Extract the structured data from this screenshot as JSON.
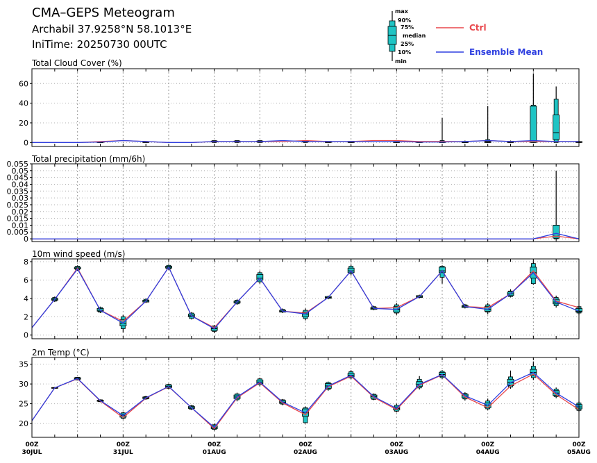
{
  "header": {
    "line1": "CMA–GEPS Meteogram",
    "line2": "Archabil 37.9258°N 58.1013°E",
    "line3": "IniTime: 20250730 00UTC"
  },
  "key": {
    "labels": [
      "max",
      "90%",
      "75%",
      "median",
      "25%",
      "10%",
      "min"
    ],
    "box_color": "#1fc4c4"
  },
  "legend": {
    "ctrl": {
      "label": "Ctrl",
      "color": "#e8474c"
    },
    "mean": {
      "label": "Ensemble Mean",
      "color": "#2e3fe0"
    }
  },
  "chart_data": [
    {
      "type": "box",
      "title": "Total Cloud Cover (%)",
      "ylim": [
        -4,
        75
      ],
      "yticks": [
        0,
        20,
        40,
        60
      ],
      "ytick_labels": [
        "0",
        "20",
        "40",
        "60"
      ],
      "x": [
        0,
        6,
        12,
        18,
        24,
        30,
        36,
        42,
        48,
        54,
        60,
        66,
        72,
        78,
        84,
        90,
        96,
        102,
        108,
        114,
        120,
        126,
        132,
        138,
        144
      ],
      "ctrl": [
        0,
        0,
        0,
        1,
        2,
        1,
        0,
        0,
        1,
        1,
        1,
        1,
        2,
        1,
        1,
        2,
        2,
        1,
        1,
        1,
        2,
        1,
        1,
        1,
        1
      ],
      "mean": [
        0,
        0,
        0,
        0.5,
        2,
        1,
        0,
        0,
        1,
        1,
        1,
        2,
        1,
        1,
        1,
        1,
        1,
        0.5,
        0.5,
        1,
        2,
        1,
        2,
        1,
        1
      ],
      "boxes": [
        {
          "x": 18,
          "min": 0,
          "p10": 0,
          "p25": 0,
          "median": 0,
          "p75": 1,
          "p90": 1,
          "max": 1
        },
        {
          "x": 30,
          "min": 0,
          "p10": 0,
          "p25": 0,
          "median": 0.5,
          "p75": 1,
          "p90": 1,
          "max": 1
        },
        {
          "x": 48,
          "min": 0,
          "p10": 0,
          "p25": 0.5,
          "median": 1,
          "p75": 1.5,
          "p90": 2,
          "max": 2
        },
        {
          "x": 54,
          "min": 0,
          "p10": 0,
          "p25": 0.5,
          "median": 1,
          "p75": 1.5,
          "p90": 2,
          "max": 2
        },
        {
          "x": 60,
          "min": 0,
          "p10": 0,
          "p25": 0.5,
          "median": 1,
          "p75": 1.5,
          "p90": 2,
          "max": 2
        },
        {
          "x": 72,
          "min": 0,
          "p10": 0,
          "p25": 0.5,
          "median": 1,
          "p75": 1.5,
          "p90": 2,
          "max": 2
        },
        {
          "x": 78,
          "min": 0,
          "p10": 0,
          "p25": 0,
          "median": 0.5,
          "p75": 1,
          "p90": 1,
          "max": 1
        },
        {
          "x": 84,
          "min": 0,
          "p10": 0,
          "p25": 0,
          "median": 0.5,
          "p75": 1,
          "p90": 1,
          "max": 1
        },
        {
          "x": 96,
          "min": 0,
          "p10": 0,
          "p25": 0,
          "median": 0.5,
          "p75": 1,
          "p90": 1,
          "max": 1
        },
        {
          "x": 102,
          "min": 0,
          "p10": 0,
          "p25": 0,
          "median": 0.5,
          "p75": 1,
          "p90": 1,
          "max": 1
        },
        {
          "x": 108,
          "min": 0,
          "p10": 0,
          "p25": 0,
          "median": 1,
          "p75": 1,
          "p90": 2,
          "max": 25
        },
        {
          "x": 114,
          "min": 0,
          "p10": 0,
          "p25": 0,
          "median": 0,
          "p75": 1,
          "p90": 1,
          "max": 2
        },
        {
          "x": 120,
          "min": 0,
          "p10": 0,
          "p25": 0,
          "median": 0.5,
          "p75": 1,
          "p90": 3,
          "max": 37
        },
        {
          "x": 126,
          "min": 0,
          "p10": 0,
          "p25": 0,
          "median": 0.5,
          "p75": 1,
          "p90": 1,
          "max": 2
        },
        {
          "x": 132,
          "min": 0,
          "p10": 0,
          "p25": 0,
          "median": 2,
          "p75": 37,
          "p90": 38,
          "max": 70
        },
        {
          "x": 138,
          "min": 0,
          "p10": 0,
          "p25": 3,
          "median": 10,
          "p75": 28,
          "p90": 44,
          "max": 57
        },
        {
          "x": 144,
          "min": 0,
          "p10": 0,
          "p25": 0,
          "median": 0.5,
          "p75": 1,
          "p90": 1,
          "max": 1
        }
      ]
    },
    {
      "type": "box",
      "title": "Total precipitation (mm/6h)",
      "ylim": [
        -0.002,
        0.055
      ],
      "yticks": [
        0,
        0.005,
        0.01,
        0.015,
        0.02,
        0.025,
        0.03,
        0.035,
        0.04,
        0.045,
        0.05,
        0.055
      ],
      "ytick_labels": [
        "0",
        "0.005",
        "0.01",
        "0.015",
        "0.02",
        "0.025",
        "0.03",
        "0.035",
        "0.04",
        "0.045",
        "0.05",
        "0.055"
      ],
      "x": [
        0,
        6,
        12,
        18,
        24,
        30,
        36,
        42,
        48,
        54,
        60,
        66,
        72,
        78,
        84,
        90,
        96,
        102,
        108,
        114,
        120,
        126,
        132,
        138,
        144
      ],
      "ctrl": [
        0,
        0,
        0,
        0,
        0,
        0,
        0,
        0,
        0,
        0,
        0,
        0,
        0,
        0,
        0,
        0,
        0,
        0,
        0,
        0,
        0,
        0,
        0,
        0.002,
        0
      ],
      "mean": [
        0,
        0,
        0,
        0,
        0,
        0,
        0,
        0,
        0,
        0,
        0,
        0,
        0,
        0,
        0,
        0,
        0,
        0,
        0,
        0,
        0,
        0,
        0,
        0.004,
        0
      ],
      "boxes": [
        {
          "x": 138,
          "min": 0,
          "p10": 0,
          "p25": 0.0005,
          "median": 0.002,
          "p75": 0.01,
          "p90": 0.01,
          "max": 0.05
        }
      ]
    },
    {
      "type": "box",
      "title": "10m wind speed (m/s)",
      "ylim": [
        -0.4,
        8.3
      ],
      "yticks": [
        0,
        2,
        4,
        6,
        8
      ],
      "ytick_labels": [
        "0",
        "2",
        "4",
        "6",
        "8"
      ],
      "x": [
        0,
        6,
        12,
        18,
        24,
        30,
        36,
        42,
        48,
        54,
        60,
        66,
        72,
        78,
        84,
        90,
        96,
        102,
        108,
        114,
        120,
        126,
        132,
        138,
        144
      ],
      "ctrl": [
        0.8,
        3.9,
        7.3,
        2.7,
        1.5,
        3.7,
        7.4,
        2.1,
        0.8,
        3.6,
        6.2,
        2.6,
        2.4,
        4.1,
        7.0,
        2.9,
        3.0,
        4.2,
        7.0,
        3.1,
        3.0,
        4.5,
        7.0,
        3.7,
        3.0
      ],
      "mean": [
        0.8,
        3.9,
        7.2,
        2.7,
        1.3,
        3.7,
        7.4,
        2.1,
        0.7,
        3.6,
        6.2,
        2.6,
        2.3,
        4.1,
        7.0,
        2.9,
        2.8,
        4.2,
        7.0,
        3.1,
        2.8,
        4.5,
        6.8,
        3.6,
        2.6
      ],
      "boxes": [
        {
          "x": 6,
          "min": 3.6,
          "p10": 3.7,
          "p25": 3.8,
          "median": 3.9,
          "p75": 4.0,
          "p90": 4.1,
          "max": 4.2
        },
        {
          "x": 12,
          "min": 7.0,
          "p10": 7.1,
          "p25": 7.2,
          "median": 7.3,
          "p75": 7.4,
          "p90": 7.5,
          "max": 7.6
        },
        {
          "x": 18,
          "min": 2.4,
          "p10": 2.5,
          "p25": 2.6,
          "median": 2.7,
          "p75": 2.9,
          "p90": 3.0,
          "max": 3.1
        },
        {
          "x": 24,
          "min": 0.3,
          "p10": 0.7,
          "p25": 1.0,
          "median": 1.3,
          "p75": 1.7,
          "p90": 2.0,
          "max": 2.2
        },
        {
          "x": 30,
          "min": 3.5,
          "p10": 3.6,
          "p25": 3.6,
          "median": 3.7,
          "p75": 3.8,
          "p90": 3.9,
          "max": 4.0
        },
        {
          "x": 36,
          "min": 7.1,
          "p10": 7.2,
          "p25": 7.3,
          "median": 7.4,
          "p75": 7.5,
          "p90": 7.6,
          "max": 7.7
        },
        {
          "x": 42,
          "min": 1.7,
          "p10": 1.8,
          "p25": 2.0,
          "median": 2.1,
          "p75": 2.3,
          "p90": 2.4,
          "max": 2.5
        },
        {
          "x": 48,
          "min": 0.2,
          "p10": 0.4,
          "p25": 0.5,
          "median": 0.7,
          "p75": 0.9,
          "p90": 1.0,
          "max": 1.1
        },
        {
          "x": 54,
          "min": 3.3,
          "p10": 3.4,
          "p25": 3.5,
          "median": 3.6,
          "p75": 3.7,
          "p90": 3.8,
          "max": 3.9
        },
        {
          "x": 60,
          "min": 5.6,
          "p10": 5.8,
          "p25": 6.0,
          "median": 6.2,
          "p75": 6.6,
          "p90": 6.8,
          "max": 7.0
        },
        {
          "x": 66,
          "min": 2.4,
          "p10": 2.5,
          "p25": 2.5,
          "median": 2.6,
          "p75": 2.7,
          "p90": 2.8,
          "max": 2.9
        },
        {
          "x": 72,
          "min": 1.6,
          "p10": 1.8,
          "p25": 2.0,
          "median": 2.3,
          "p75": 2.5,
          "p90": 2.7,
          "max": 2.9
        },
        {
          "x": 78,
          "min": 3.9,
          "p10": 4.0,
          "p25": 4.0,
          "median": 4.1,
          "p75": 4.2,
          "p90": 4.2,
          "max": 4.3
        },
        {
          "x": 84,
          "min": 6.5,
          "p10": 6.7,
          "p25": 6.8,
          "median": 7.0,
          "p75": 7.3,
          "p90": 7.5,
          "max": 7.7
        },
        {
          "x": 90,
          "min": 2.7,
          "p10": 2.8,
          "p25": 2.8,
          "median": 2.9,
          "p75": 3.0,
          "p90": 3.1,
          "max": 3.2
        },
        {
          "x": 96,
          "min": 2.2,
          "p10": 2.4,
          "p25": 2.5,
          "median": 2.8,
          "p75": 3.1,
          "p90": 3.3,
          "max": 3.5
        },
        {
          "x": 102,
          "min": 4.0,
          "p10": 4.1,
          "p25": 4.1,
          "median": 4.2,
          "p75": 4.3,
          "p90": 4.3,
          "max": 4.4
        },
        {
          "x": 108,
          "min": 5.6,
          "p10": 6.3,
          "p25": 6.8,
          "median": 7.0,
          "p75": 7.4,
          "p90": 7.5,
          "max": 7.6
        },
        {
          "x": 114,
          "min": 2.9,
          "p10": 3.0,
          "p25": 3.0,
          "median": 3.1,
          "p75": 3.2,
          "p90": 3.3,
          "max": 3.4
        },
        {
          "x": 120,
          "min": 2.3,
          "p10": 2.5,
          "p25": 2.6,
          "median": 2.8,
          "p75": 3.1,
          "p90": 3.3,
          "max": 3.5
        },
        {
          "x": 126,
          "min": 4.1,
          "p10": 4.2,
          "p25": 4.3,
          "median": 4.5,
          "p75": 4.7,
          "p90": 4.8,
          "max": 5.0
        },
        {
          "x": 132,
          "min": 5.5,
          "p10": 5.6,
          "p25": 6.2,
          "median": 6.8,
          "p75": 7.4,
          "p90": 7.8,
          "max": 8.0
        },
        {
          "x": 138,
          "min": 3.0,
          "p10": 3.2,
          "p25": 3.4,
          "median": 3.6,
          "p75": 3.9,
          "p90": 4.1,
          "max": 4.3
        },
        {
          "x": 144,
          "min": 2.2,
          "p10": 2.4,
          "p25": 2.5,
          "median": 2.6,
          "p75": 2.9,
          "p90": 3.1,
          "max": 3.2
        }
      ]
    },
    {
      "type": "box",
      "title": "2m Temp (°C)",
      "ylim": [
        16.5,
        36.7
      ],
      "yticks": [
        20,
        25,
        30,
        35
      ],
      "ytick_labels": [
        "20",
        "25",
        "30",
        "35"
      ],
      "x": [
        0,
        6,
        12,
        18,
        24,
        30,
        36,
        42,
        48,
        54,
        60,
        66,
        72,
        78,
        84,
        90,
        96,
        102,
        108,
        114,
        120,
        126,
        132,
        138,
        144
      ],
      "ctrl": [
        20.7,
        29.0,
        31.3,
        25.7,
        21.5,
        26.4,
        29.3,
        24.0,
        18.7,
        26.5,
        30.3,
        25.2,
        22.2,
        29.3,
        32.0,
        26.6,
        23.5,
        29.7,
        32.3,
        26.7,
        24.0,
        29.5,
        32.5,
        27.3,
        23.5
      ],
      "mean": [
        20.7,
        29.0,
        31.4,
        25.8,
        22.0,
        26.5,
        29.4,
        24.0,
        19.0,
        26.7,
        30.5,
        25.4,
        22.7,
        29.5,
        32.2,
        26.8,
        23.8,
        29.9,
        32.4,
        27.0,
        24.6,
        30.3,
        32.9,
        27.7,
        24.2
      ],
      "boxes": [
        {
          "x": 6,
          "min": 28.8,
          "p10": 28.9,
          "p25": 28.9,
          "median": 29.0,
          "p75": 29.1,
          "p90": 29.1,
          "max": 29.2
        },
        {
          "x": 12,
          "min": 30.9,
          "p10": 31.0,
          "p25": 31.2,
          "median": 31.4,
          "p75": 31.6,
          "p90": 31.7,
          "max": 31.8
        },
        {
          "x": 18,
          "min": 25.4,
          "p10": 25.5,
          "p25": 25.6,
          "median": 25.8,
          "p75": 25.9,
          "p90": 26.0,
          "max": 26.1
        },
        {
          "x": 24,
          "min": 21.0,
          "p10": 21.3,
          "p25": 21.6,
          "median": 22.0,
          "p75": 22.4,
          "p90": 22.7,
          "max": 23.0
        },
        {
          "x": 30,
          "min": 26.0,
          "p10": 26.2,
          "p25": 26.3,
          "median": 26.5,
          "p75": 26.7,
          "p90": 26.8,
          "max": 27.0
        },
        {
          "x": 36,
          "min": 28.7,
          "p10": 28.9,
          "p25": 29.1,
          "median": 29.4,
          "p75": 29.7,
          "p90": 29.9,
          "max": 30.1
        },
        {
          "x": 42,
          "min": 23.4,
          "p10": 23.6,
          "p25": 23.8,
          "median": 24.0,
          "p75": 24.3,
          "p90": 24.5,
          "max": 24.7
        },
        {
          "x": 48,
          "min": 18.2,
          "p10": 18.5,
          "p25": 18.7,
          "median": 19.0,
          "p75": 19.4,
          "p90": 19.7,
          "max": 20.0
        },
        {
          "x": 54,
          "min": 25.6,
          "p10": 26.0,
          "p25": 26.3,
          "median": 26.7,
          "p75": 27.2,
          "p90": 27.5,
          "max": 27.8
        },
        {
          "x": 60,
          "min": 29.4,
          "p10": 29.8,
          "p25": 30.1,
          "median": 30.5,
          "p75": 31.0,
          "p90": 31.3,
          "max": 31.6
        },
        {
          "x": 66,
          "min": 24.6,
          "p10": 24.9,
          "p25": 25.1,
          "median": 25.4,
          "p75": 25.8,
          "p90": 26.0,
          "max": 26.2
        },
        {
          "x": 72,
          "min": 20.0,
          "p10": 20.2,
          "p25": 21.8,
          "median": 22.7,
          "p75": 23.7,
          "p90": 24.0,
          "max": 24.3
        },
        {
          "x": 78,
          "min": 28.3,
          "p10": 28.6,
          "p25": 28.9,
          "median": 29.5,
          "p75": 30.1,
          "p90": 30.4,
          "max": 30.6
        },
        {
          "x": 84,
          "min": 31.2,
          "p10": 31.5,
          "p25": 31.8,
          "median": 32.2,
          "p75": 32.7,
          "p90": 33.1,
          "max": 33.5
        },
        {
          "x": 90,
          "min": 25.9,
          "p10": 26.1,
          "p25": 26.4,
          "median": 26.8,
          "p75": 27.2,
          "p90": 27.4,
          "max": 27.6
        },
        {
          "x": 96,
          "min": 22.8,
          "p10": 23.1,
          "p25": 23.4,
          "median": 23.8,
          "p75": 24.2,
          "p90": 24.6,
          "max": 25.0
        },
        {
          "x": 102,
          "min": 28.6,
          "p10": 29.0,
          "p25": 29.4,
          "median": 29.9,
          "p75": 30.6,
          "p90": 31.2,
          "max": 32.0
        },
        {
          "x": 108,
          "min": 31.3,
          "p10": 31.6,
          "p25": 31.9,
          "median": 32.4,
          "p75": 32.9,
          "p90": 33.2,
          "max": 33.5
        },
        {
          "x": 114,
          "min": 25.8,
          "p10": 26.2,
          "p25": 26.5,
          "median": 27.0,
          "p75": 27.4,
          "p90": 27.6,
          "max": 27.9
        },
        {
          "x": 120,
          "min": 23.4,
          "p10": 23.7,
          "p25": 24.0,
          "median": 24.6,
          "p75": 25.2,
          "p90": 25.7,
          "max": 26.3
        },
        {
          "x": 126,
          "min": 28.8,
          "p10": 29.2,
          "p25": 29.6,
          "median": 30.3,
          "p75": 31.2,
          "p90": 31.8,
          "max": 33.4
        },
        {
          "x": 132,
          "min": 31.0,
          "p10": 31.6,
          "p25": 32.2,
          "median": 32.9,
          "p75": 33.7,
          "p90": 34.5,
          "max": 35.6
        },
        {
          "x": 138,
          "min": 26.4,
          "p10": 26.8,
          "p25": 27.1,
          "median": 27.7,
          "p75": 28.3,
          "p90": 28.7,
          "max": 29.1
        },
        {
          "x": 144,
          "min": 22.9,
          "p10": 23.3,
          "p25": 23.7,
          "median": 24.2,
          "p75": 24.8,
          "p90": 25.2,
          "max": 25.6
        }
      ]
    }
  ],
  "xaxis": {
    "ticks": [
      0,
      24,
      48,
      72,
      96,
      120,
      144
    ],
    "labels_time": [
      "00Z",
      "00Z",
      "00Z",
      "00Z",
      "00Z",
      "00Z",
      "00Z"
    ],
    "labels_date": [
      "30JUL",
      "31JUL",
      "01AUG",
      "02AUG",
      "03AUG",
      "04AUG",
      "05AUG"
    ]
  }
}
